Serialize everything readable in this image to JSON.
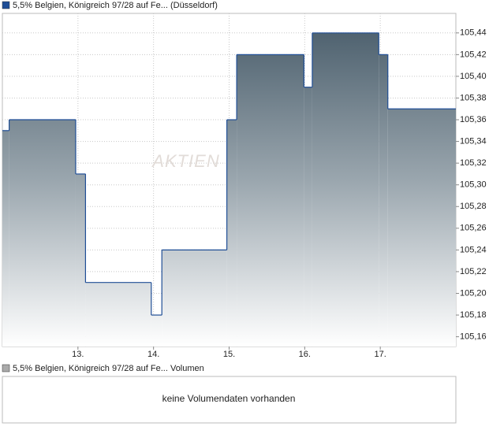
{
  "chart_data": {
    "type": "step-area",
    "watermark": "AKTIEN",
    "series": [
      {
        "name": "5,5% Belgien, Königreich 97/28 auf Fe... (Düsseldorf)",
        "color": "#1f4e96",
        "x": [
          12.0,
          12.09,
          12.97,
          13.1,
          13.97,
          14.11,
          14.97,
          15.1,
          15.99,
          16.1,
          16.98,
          17.1
        ],
        "values": [
          105.35,
          105.36,
          105.31,
          105.21,
          105.18,
          105.24,
          105.36,
          105.42,
          105.39,
          105.44,
          105.42,
          105.37
        ]
      }
    ],
    "xlim": [
      12,
      18
    ],
    "xticks": [
      {
        "value": 13,
        "label": "13."
      },
      {
        "value": 14,
        "label": "14."
      },
      {
        "value": 15,
        "label": "15."
      },
      {
        "value": 16,
        "label": "16."
      },
      {
        "value": 17,
        "label": "17."
      }
    ],
    "ylim": [
      105.151,
      105.458
    ],
    "yticks": [
      {
        "value": 105.16,
        "label": "105,16"
      },
      {
        "value": 105.18,
        "label": "105,18"
      },
      {
        "value": 105.2,
        "label": "105,20"
      },
      {
        "value": 105.22,
        "label": "105,22"
      },
      {
        "value": 105.24,
        "label": "105,24"
      },
      {
        "value": 105.26,
        "label": "105,26"
      },
      {
        "value": 105.28,
        "label": "105,28"
      },
      {
        "value": 105.3,
        "label": "105,30"
      },
      {
        "value": 105.32,
        "label": "105,32"
      },
      {
        "value": 105.34,
        "label": "105,34"
      },
      {
        "value": 105.36,
        "label": "105,36"
      },
      {
        "value": 105.38,
        "label": "105,38"
      },
      {
        "value": 105.4,
        "label": "105,40"
      },
      {
        "value": 105.42,
        "label": "105,42"
      },
      {
        "value": 105.44,
        "label": "105,44"
      }
    ],
    "grid": true,
    "volume": {
      "name": "5,5% Belgien, Königreich 97/28 auf Fe... Volumen",
      "color": "#aaaaaa",
      "message": "keine Volumendaten vorhanden"
    }
  }
}
